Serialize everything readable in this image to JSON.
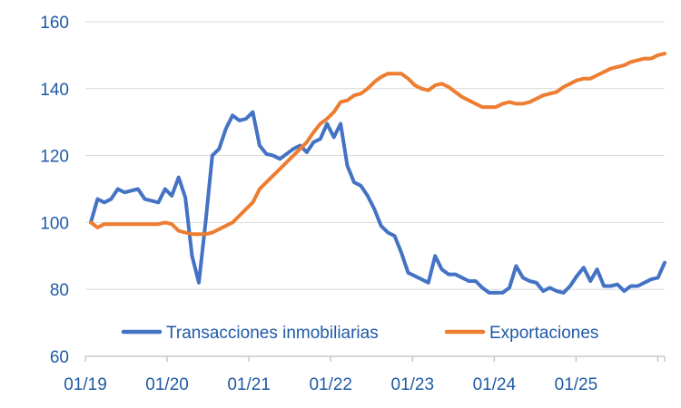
{
  "chart_data": {
    "type": "line",
    "title": "",
    "xlabel": "",
    "ylabel": "",
    "ylim": [
      60,
      160
    ],
    "yticks": [
      60,
      80,
      100,
      120,
      140,
      160
    ],
    "xticks": [
      "01/19",
      "01/20",
      "01/21",
      "01/22",
      "01/23",
      "01/24",
      "01/25"
    ],
    "x_start": "01/19",
    "x_end": "12/25",
    "grid": "horizontal",
    "legend": "bottom",
    "series": [
      {
        "name": "Transacciones inmobiliarias",
        "color": "#4472c4",
        "values": [
          100,
          107,
          106,
          107,
          110,
          109,
          109.5,
          110,
          107,
          106.5,
          106,
          110,
          108,
          113.5,
          107.5,
          90,
          82,
          100,
          120,
          122,
          128,
          132,
          130.5,
          131,
          133,
          123,
          120.5,
          120,
          119,
          120.5,
          122,
          123,
          121,
          124,
          125,
          129.5,
          125.5,
          129.5,
          117,
          112,
          111,
          108,
          104,
          99,
          97,
          96,
          91,
          85,
          84,
          83,
          82,
          90,
          86,
          84.5,
          84.5,
          83.5,
          82.5,
          82.5,
          80.5,
          79,
          79,
          79,
          80.5,
          87,
          83.5,
          82.5,
          82,
          79.5,
          80.5,
          79.5,
          79,
          81,
          84,
          86.5,
          82.5,
          86,
          81,
          81,
          81.5,
          79.5,
          81,
          81,
          82,
          83,
          83.5,
          88
        ]
      },
      {
        "name": "Exportaciones",
        "color": "#ed7d31",
        "values": [
          100,
          98.5,
          99.5,
          99.5,
          99.5,
          99.5,
          99.5,
          99.5,
          99.5,
          99.5,
          99.5,
          100,
          99.5,
          97.5,
          97,
          96.5,
          96.5,
          96.5,
          97,
          98,
          99,
          100,
          102,
          104,
          106,
          110,
          112,
          114,
          116,
          118,
          120,
          122,
          124,
          127,
          129.5,
          131,
          133,
          136,
          136.5,
          138,
          138.5,
          140,
          142,
          143.5,
          144.5,
          144.5,
          144.5,
          143,
          141,
          140,
          139.5,
          141,
          141.5,
          140.5,
          139,
          137.5,
          136.5,
          135.5,
          134.5,
          134.5,
          134.5,
          135.5,
          136,
          135.5,
          135.5,
          136,
          137,
          138,
          138.5,
          139,
          140.5,
          141.5,
          142.5,
          143,
          143,
          144,
          145,
          146,
          146.5,
          147,
          148,
          148.5,
          149,
          149,
          150,
          150.5
        ]
      }
    ]
  }
}
